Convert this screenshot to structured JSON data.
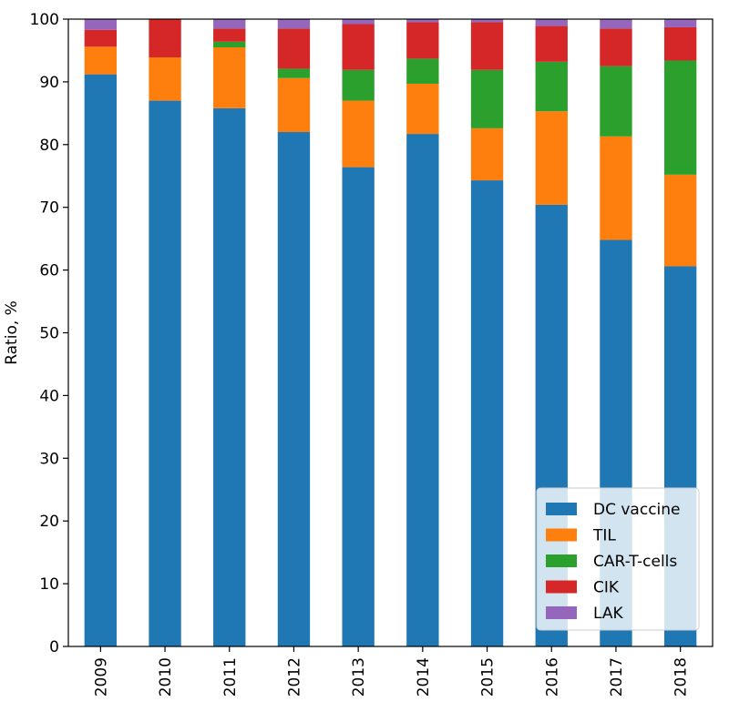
{
  "chart_data": {
    "type": "bar",
    "stacked": true,
    "title": "",
    "xlabel": "",
    "ylabel": "Ratio, %",
    "ylim": [
      0,
      100
    ],
    "yticks": [
      0,
      10,
      20,
      30,
      40,
      50,
      60,
      70,
      80,
      90,
      100
    ],
    "categories": [
      "2009",
      "2010",
      "2011",
      "2012",
      "2013",
      "2014",
      "2015",
      "2016",
      "2017",
      "2018"
    ],
    "legend_position": "lower right",
    "grid": false,
    "series": [
      {
        "name": "DC vaccine",
        "color": "#1f77b4",
        "values": [
          91.2,
          87.0,
          85.8,
          82.0,
          76.4,
          81.7,
          74.3,
          70.4,
          64.8,
          60.6
        ]
      },
      {
        "name": "TIL",
        "color": "#ff7f0e",
        "values": [
          4.4,
          6.9,
          9.7,
          8.6,
          10.6,
          8.0,
          8.3,
          14.9,
          16.5,
          14.6
        ]
      },
      {
        "name": "CAR-T-cells",
        "color": "#2ca02c",
        "values": [
          0.0,
          0.0,
          0.9,
          1.5,
          4.9,
          4.0,
          9.3,
          7.9,
          11.2,
          18.2
        ]
      },
      {
        "name": "CIK",
        "color": "#d62728",
        "values": [
          2.7,
          6.1,
          2.1,
          6.4,
          7.3,
          5.8,
          7.6,
          5.7,
          6.0,
          5.3
        ]
      },
      {
        "name": "LAK",
        "color": "#9467bd",
        "values": [
          1.7,
          0.0,
          1.5,
          1.5,
          0.8,
          0.5,
          0.5,
          1.1,
          1.5,
          1.3
        ]
      }
    ]
  }
}
